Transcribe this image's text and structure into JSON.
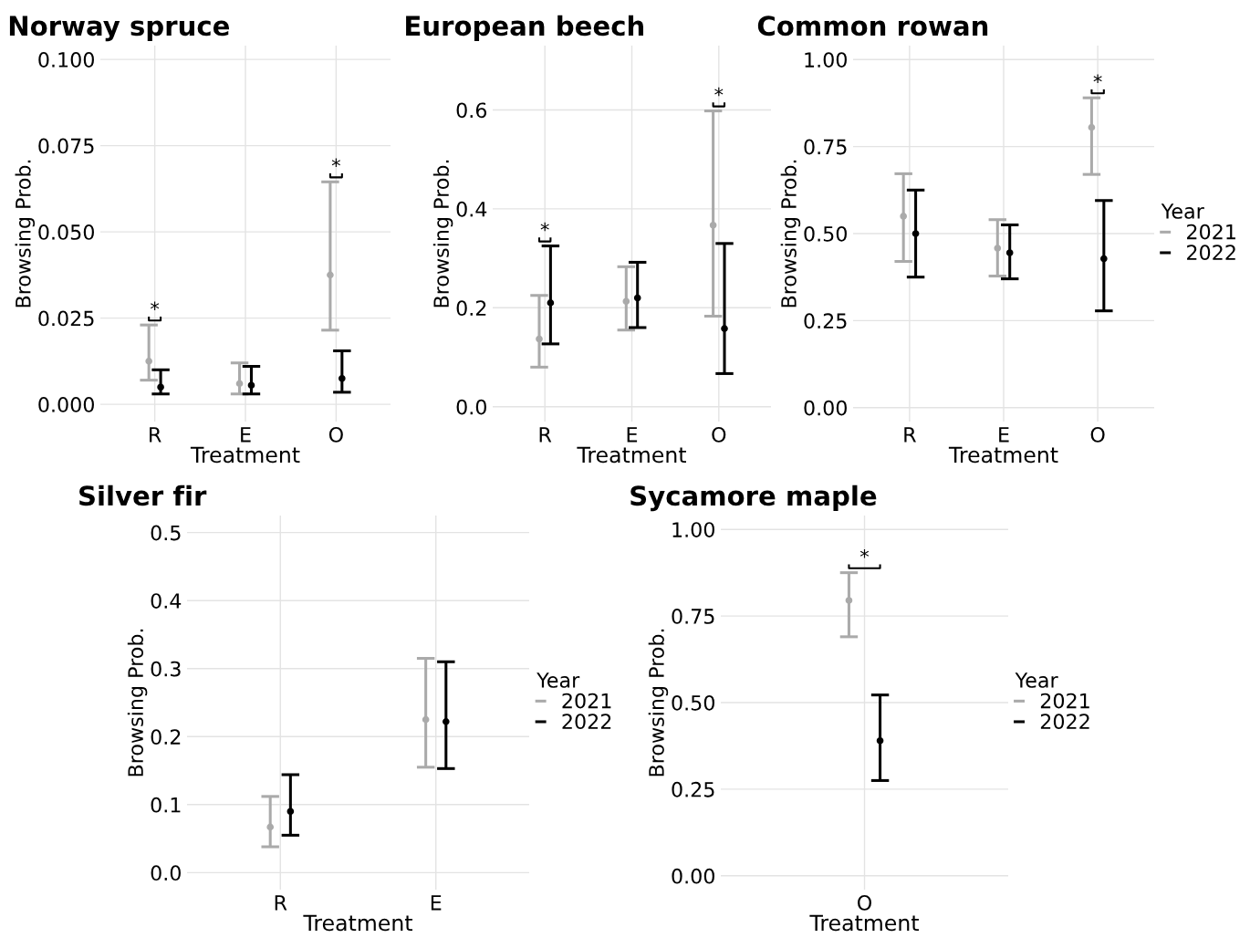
{
  "chart_data": [
    {
      "type": "scatter",
      "title": "Norway spruce",
      "xlabel": "Treatment",
      "ylabel": "Browsing Prob.",
      "categories": [
        "R",
        "E",
        "O"
      ],
      "ylim": [
        -0.005,
        0.104
      ],
      "yticks": [
        {
          "value": 0,
          "label": "0.000"
        },
        {
          "value": 0.025,
          "label": "0.025"
        },
        {
          "value": 0.05,
          "label": "0.050"
        },
        {
          "value": 0.075,
          "label": "0.075"
        },
        {
          "value": 0.1,
          "label": "0.100"
        }
      ],
      "grid": true,
      "legend": false,
      "marker": "circle",
      "series": [
        {
          "color": "#aaaaaa",
          "values": [
            0.0125,
            0.006,
            0.0375
          ],
          "errors": [
            [
              0.007,
              0.023
            ],
            [
              0.003,
              0.012
            ],
            [
              0.0215,
              0.0645
            ]
          ]
        },
        {
          "color": "#000000",
          "values": [
            0.005,
            0.0055,
            0.0075
          ],
          "errors": [
            [
              0.003,
              0.01
            ],
            [
              0.003,
              0.011
            ],
            [
              0.0035,
              0.0155
            ]
          ]
        }
      ],
      "annotations": [
        "*",
        "*"
      ]
    },
    {
      "type": "scatter",
      "title": "European beech",
      "xlabel": "Treatment",
      "ylabel": "Browsing Prob.",
      "categories": [
        "R",
        "E",
        "O"
      ],
      "ylim": [
        -0.03,
        0.73
      ],
      "yticks": [
        {
          "value": 0,
          "label": "0.0"
        },
        0.2,
        0.4,
        0.6
      ],
      "grid": true,
      "legend": false,
      "marker": "circle",
      "series": [
        {
          "color": "#aaaaaa",
          "values": [
            0.137,
            0.213,
            0.367
          ],
          "errors": [
            [
              0.08,
              0.225
            ],
            [
              0.155,
              0.283
            ],
            [
              0.183,
              0.598
            ]
          ]
        },
        {
          "color": "#000000",
          "values": [
            0.21,
            0.22,
            0.158
          ],
          "errors": [
            [
              0.127,
              0.325
            ],
            [
              0.16,
              0.292
            ],
            [
              0.067,
              0.33
            ]
          ]
        }
      ],
      "annotations": [
        "*",
        "*"
      ]
    },
    {
      "type": "scatter",
      "title": "Common rowan",
      "xlabel": "Treatment",
      "ylabel": "Browsing Prob.",
      "categories": [
        "R",
        "E",
        "O"
      ],
      "ylim": [
        -0.04,
        1.04
      ],
      "yticks": [
        {
          "value": 0,
          "label": "0.00"
        },
        0.25,
        {
          "value": 0.5,
          "label": "0.50"
        },
        0.75,
        {
          "value": 1,
          "label": "1.00"
        }
      ],
      "grid": true,
      "legend": "right",
      "legend_title": "Year",
      "marker": "circle",
      "series": [
        {
          "name": "2021",
          "color": "#aaaaaa",
          "values": [
            0.55,
            0.458,
            0.805
          ],
          "errors": [
            [
              0.42,
              0.672
            ],
            [
              0.378,
              0.54
            ],
            [
              0.67,
              0.89
            ]
          ]
        },
        {
          "name": "2022",
          "color": "#000000",
          "values": [
            0.5,
            0.445,
            0.428
          ],
          "errors": [
            [
              0.375,
              0.625
            ],
            [
              0.37,
              0.525
            ],
            [
              0.278,
              0.595
            ]
          ]
        }
      ],
      "annotations": [
        "*"
      ]
    },
    {
      "type": "scatter",
      "title": "Silver fir",
      "xlabel": "Treatment",
      "ylabel": "Browsing Prob.",
      "categories": [
        "R",
        "E"
      ],
      "ylim": [
        -0.025,
        0.525
      ],
      "yticks": [
        {
          "value": 0,
          "label": "0.0"
        },
        0.1,
        0.2,
        0.3,
        0.4,
        0.5
      ],
      "grid": true,
      "legend": "right",
      "legend_title": "Year",
      "marker": "circle",
      "series": [
        {
          "name": "2021",
          "color": "#aaaaaa",
          "values": [
            0.067,
            0.225
          ],
          "errors": [
            [
              0.038,
              0.112
            ],
            [
              0.155,
              0.315
            ]
          ]
        },
        {
          "name": "2022",
          "color": "#000000",
          "values": [
            0.09,
            0.222
          ],
          "errors": [
            [
              0.055,
              0.144
            ],
            [
              0.153,
              0.31
            ]
          ]
        }
      ]
    },
    {
      "type": "scatter",
      "title": "Sycamore maple",
      "xlabel": "Treatment",
      "ylabel": "Browsing Prob.",
      "categories": [
        "O"
      ],
      "ylim": [
        -0.04,
        1.04
      ],
      "yticks": [
        {
          "value": 0,
          "label": "0.00"
        },
        0.25,
        {
          "value": 0.5,
          "label": "0.50"
        },
        0.75,
        {
          "value": 1,
          "label": "1.00"
        }
      ],
      "grid": true,
      "legend": "right",
      "legend_title": "Year",
      "marker": "circle",
      "series": [
        {
          "name": "2021",
          "color": "#aaaaaa",
          "values": [
            0.795
          ],
          "errors": [
            [
              0.69,
              0.875
            ]
          ]
        },
        {
          "name": "2022",
          "color": "#000000",
          "values": [
            0.39
          ],
          "errors": [
            [
              0.275,
              0.522
            ]
          ]
        }
      ],
      "annotations": [
        "*"
      ]
    }
  ]
}
